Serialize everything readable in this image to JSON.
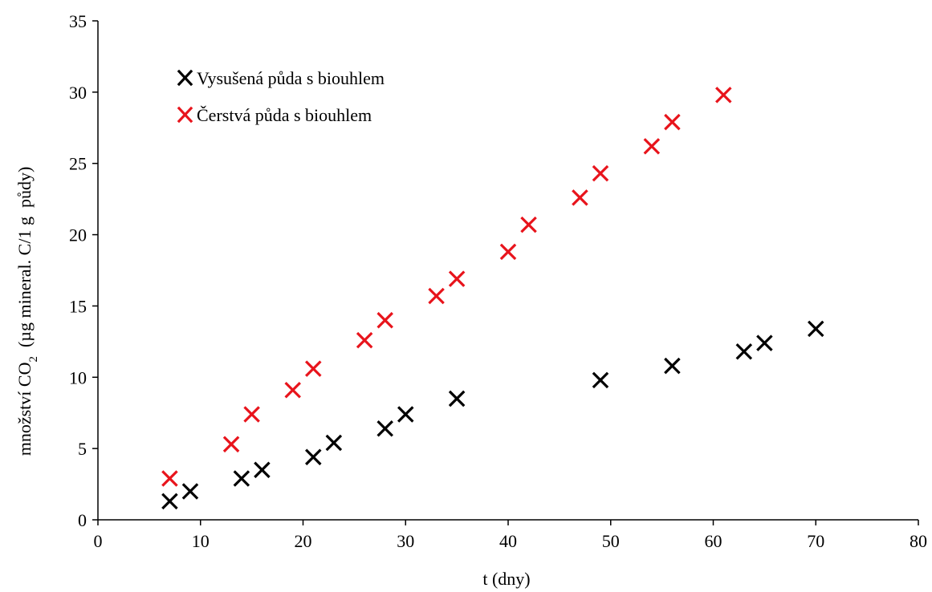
{
  "chart_data": {
    "type": "scatter",
    "title": "",
    "xlabel": "t (dny)",
    "ylabel": {
      "main": "množství CO",
      "subscript": "2",
      "rest": "  (µg mineral. C/1 g  půdy)"
    },
    "xlim": [
      0,
      80
    ],
    "ylim": [
      0,
      35
    ],
    "xticks": [
      0,
      10,
      20,
      30,
      40,
      50,
      60,
      70,
      80
    ],
    "yticks": [
      0,
      5,
      10,
      15,
      20,
      25,
      30,
      35
    ],
    "grid": false,
    "legend_position": "top-left",
    "marker": "x",
    "series": [
      {
        "name": "Vysušená půda s biouhlem",
        "color": "#000000",
        "x": [
          7,
          9,
          14,
          16,
          21,
          23,
          28,
          30,
          35,
          49,
          56,
          63,
          65,
          70
        ],
        "y": [
          1.3,
          2.0,
          2.9,
          3.5,
          4.4,
          5.4,
          6.4,
          7.4,
          8.5,
          9.8,
          10.8,
          11.8,
          12.4,
          13.4
        ]
      },
      {
        "name": "Čerstvá půda s biouhlem",
        "color": "#e8141c",
        "x": [
          7,
          13,
          15,
          19,
          21,
          26,
          28,
          33,
          35,
          40,
          42,
          47,
          49,
          54,
          56,
          61
        ],
        "y": [
          2.9,
          5.3,
          7.4,
          9.1,
          10.6,
          12.6,
          14.0,
          15.7,
          16.9,
          18.8,
          20.7,
          22.6,
          24.3,
          26.2,
          27.9,
          29.8
        ]
      }
    ]
  }
}
